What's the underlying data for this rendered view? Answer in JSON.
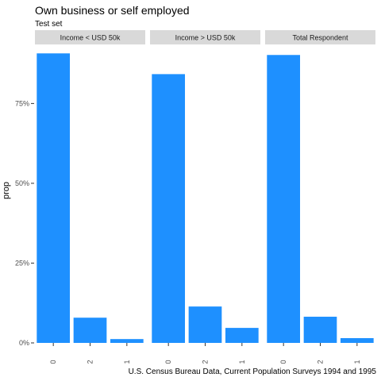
{
  "chart_data": {
    "type": "bar",
    "title": "Own business or self employed",
    "subtitle": "Test set",
    "caption": "U.S. Census Bureau Data, Current Population Surveys 1994 and 1995",
    "xlabel": "",
    "ylabel": "prop",
    "ylim": [
      0,
      0.93
    ],
    "yticks": [
      0,
      0.25,
      0.5,
      0.75
    ],
    "ytick_labels": [
      "0%",
      "25%",
      "50%",
      "75%"
    ],
    "categories": [
      "0",
      "2",
      "1"
    ],
    "bar_color": "#1e90ff",
    "strip_color": "#d9d9d9",
    "grid": false,
    "panels": [
      {
        "name": "Income < USD 50k",
        "values": [
          0.907,
          0.079,
          0.012
        ]
      },
      {
        "name": "Income > USD 50k",
        "values": [
          0.842,
          0.114,
          0.047
        ]
      },
      {
        "name": "Total Respondent",
        "values": [
          0.902,
          0.082,
          0.015
        ]
      }
    ]
  }
}
